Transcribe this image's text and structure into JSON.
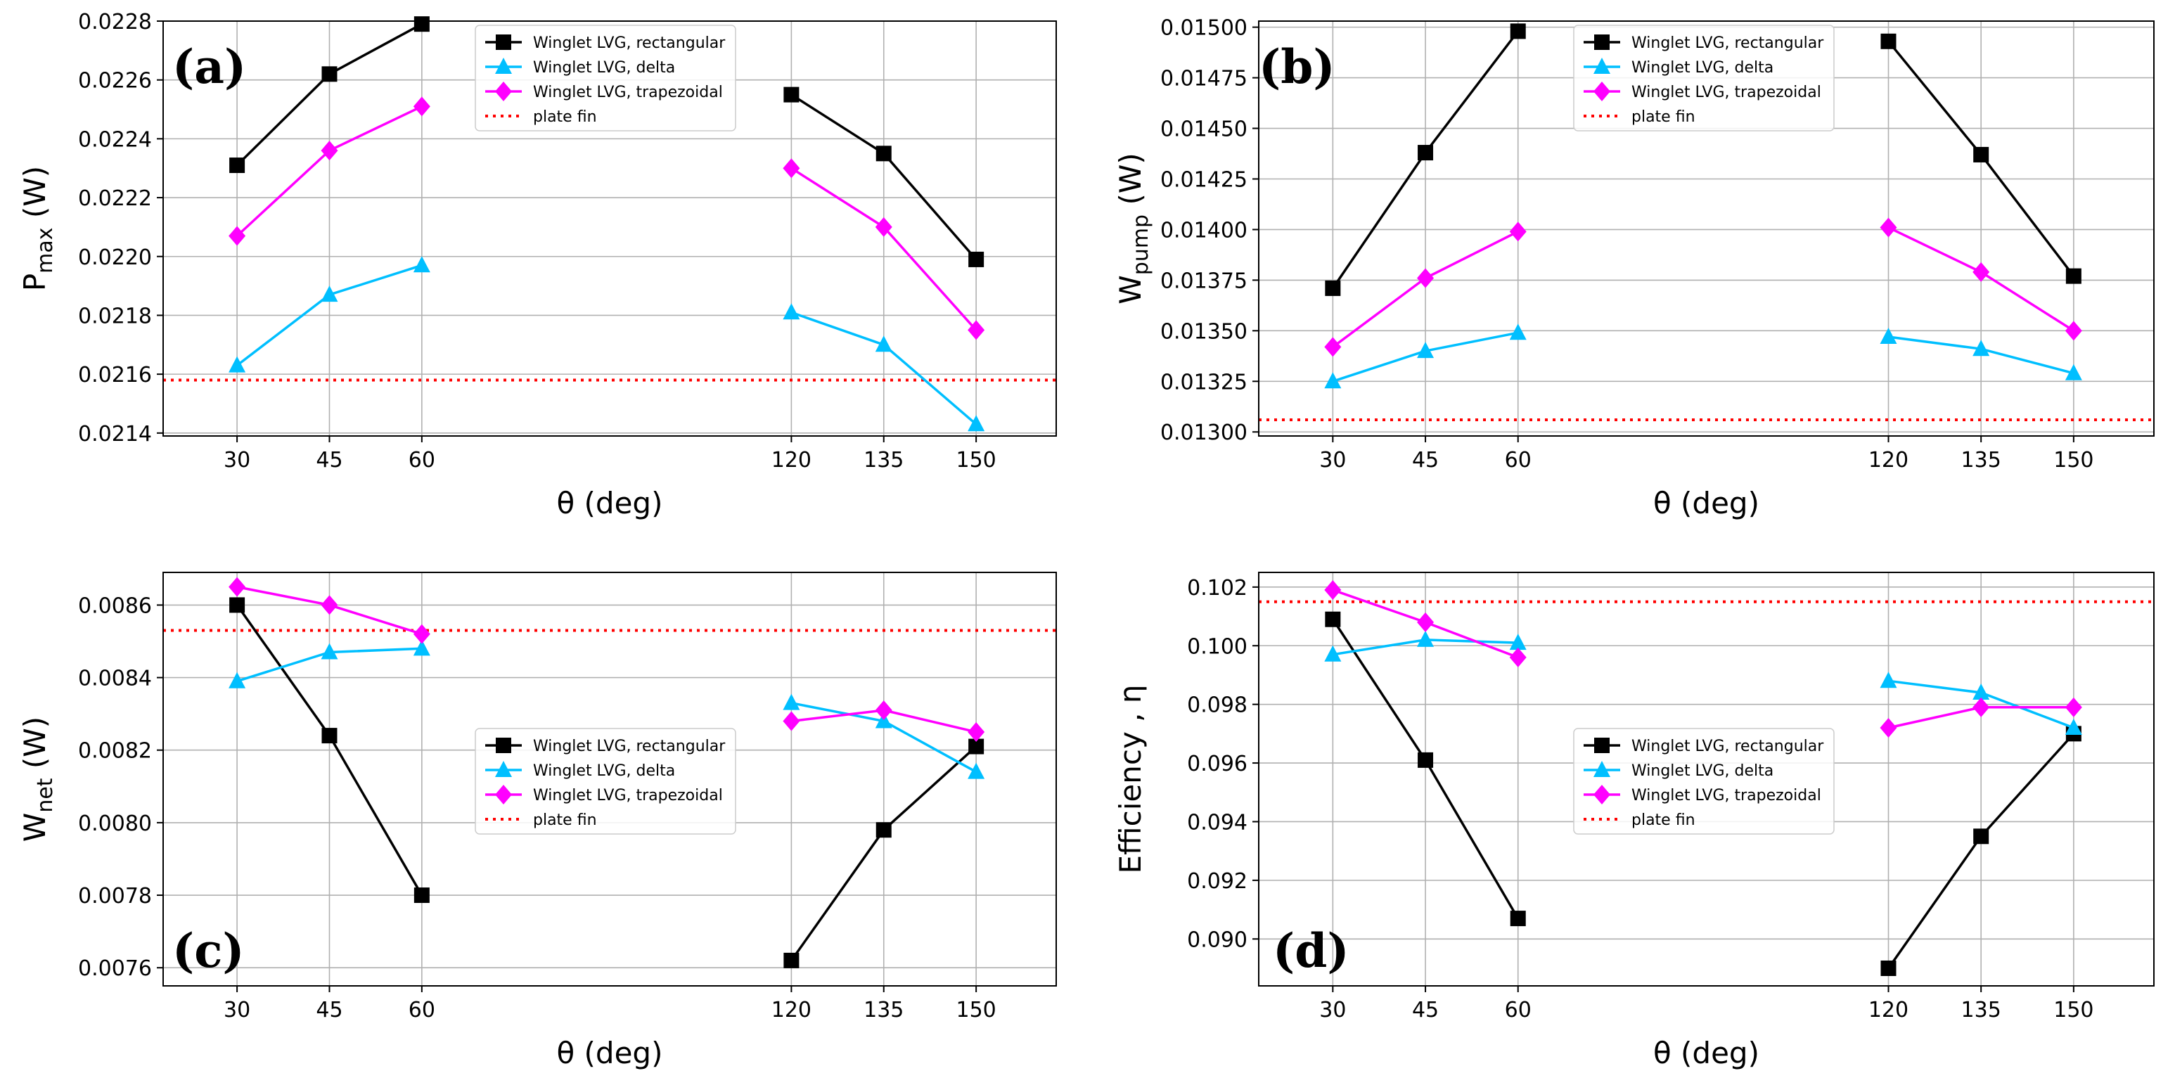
{
  "chart_data": [
    {
      "type": "line",
      "panel": "(a)",
      "xlabel": "θ (deg)",
      "ylabel": {
        "base": "P",
        "sub": "max",
        "unit": " (W)"
      },
      "x": [
        30,
        45,
        60,
        120,
        135,
        150
      ],
      "x_tick_labels": [
        "30",
        "45",
        "60",
        "120",
        "135",
        "150"
      ],
      "ylim": [
        0.02139,
        0.0228
      ],
      "y_ticks": [
        0.0214,
        0.0216,
        0.0218,
        0.022,
        0.0222,
        0.0224,
        0.0226,
        0.0228
      ],
      "y_tick_labels": [
        "0.0214",
        "0.0216",
        "0.0218",
        "0.0220",
        "0.0222",
        "0.0224",
        "0.0226",
        "0.0228"
      ],
      "legend_position": "top-center",
      "series": [
        {
          "name": "Winglet LVG, rectangular",
          "color": "#000000",
          "marker": "square",
          "values": [
            0.02231,
            0.02262,
            0.02279,
            0.02255,
            0.02235,
            0.02199
          ]
        },
        {
          "name": "Winglet LVG, delta",
          "color": "#00bfff",
          "marker": "triangle",
          "values": [
            0.02163,
            0.02187,
            0.02197,
            0.02181,
            0.0217,
            0.02143
          ]
        },
        {
          "name": "Winglet LVG, trapezoidal",
          "color": "#ff00ff",
          "marker": "diamond",
          "values": [
            0.02207,
            0.02236,
            0.02251,
            0.0223,
            0.0221,
            0.02175
          ]
        }
      ],
      "reference_line": {
        "name": "plate fin",
        "color": "#ff0000",
        "value": 0.02158
      }
    },
    {
      "type": "line",
      "panel": "(b)",
      "xlabel": "θ (deg)",
      "ylabel": {
        "base": "W",
        "sub": "pump",
        "unit": " (W)"
      },
      "x": [
        30,
        45,
        60,
        120,
        135,
        150
      ],
      "x_tick_labels": [
        "30",
        "45",
        "60",
        "120",
        "135",
        "150"
      ],
      "ylim": [
        0.01298,
        0.01503
      ],
      "y_ticks": [
        0.013,
        0.01325,
        0.0135,
        0.01375,
        0.014,
        0.01425,
        0.0145,
        0.01475,
        0.015
      ],
      "y_tick_labels": [
        "0.01300",
        "0.01325",
        "0.01350",
        "0.01375",
        "0.01400",
        "0.01425",
        "0.01450",
        "0.01475",
        "0.01500"
      ],
      "legend_position": "top-center",
      "series": [
        {
          "name": "Winglet LVG, rectangular",
          "color": "#000000",
          "marker": "square",
          "values": [
            0.01371,
            0.01438,
            0.01498,
            0.01493,
            0.01437,
            0.01377
          ]
        },
        {
          "name": "Winglet LVG, delta",
          "color": "#00bfff",
          "marker": "triangle",
          "values": [
            0.01325,
            0.0134,
            0.01349,
            0.01347,
            0.01341,
            0.01329
          ]
        },
        {
          "name": "Winglet LVG, trapezoidal",
          "color": "#ff00ff",
          "marker": "diamond",
          "values": [
            0.01342,
            0.01376,
            0.01399,
            0.01401,
            0.01379,
            0.0135
          ]
        }
      ],
      "reference_line": {
        "name": "plate fin",
        "color": "#ff0000",
        "value": 0.01306
      }
    },
    {
      "type": "line",
      "panel": "(c)",
      "xlabel": "θ (deg)",
      "ylabel": {
        "base": "W",
        "sub": "net",
        "unit": " (W)"
      },
      "x": [
        30,
        45,
        60,
        120,
        135,
        150
      ],
      "x_tick_labels": [
        "30",
        "45",
        "60",
        "120",
        "135",
        "150"
      ],
      "ylim": [
        0.00755,
        0.00869
      ],
      "y_ticks": [
        0.0076,
        0.0078,
        0.008,
        0.0082,
        0.0084,
        0.0086
      ],
      "y_tick_labels": [
        "0.0076",
        "0.0078",
        "0.0080",
        "0.0082",
        "0.0084",
        "0.0086"
      ],
      "legend_position": "center",
      "series": [
        {
          "name": "Winglet LVG, rectangular",
          "color": "#000000",
          "marker": "square",
          "values": [
            0.0086,
            0.00824,
            0.0078,
            0.00762,
            0.00798,
            0.00821
          ]
        },
        {
          "name": "Winglet LVG, delta",
          "color": "#00bfff",
          "marker": "triangle",
          "values": [
            0.00839,
            0.00847,
            0.00848,
            0.00833,
            0.00828,
            0.00814
          ]
        },
        {
          "name": "Winglet LVG, trapezoidal",
          "color": "#ff00ff",
          "marker": "diamond",
          "values": [
            0.00865,
            0.0086,
            0.00852,
            0.00828,
            0.00831,
            0.00825
          ]
        }
      ],
      "reference_line": {
        "name": "plate fin",
        "color": "#ff0000",
        "value": 0.00853
      }
    },
    {
      "type": "line",
      "panel": "(d)",
      "xlabel": "θ (deg)",
      "ylabel": {
        "base": "Efficiency , η",
        "sub": "",
        "unit": ""
      },
      "x": [
        30,
        45,
        60,
        120,
        135,
        150
      ],
      "x_tick_labels": [
        "30",
        "45",
        "60",
        "120",
        "135",
        "150"
      ],
      "ylim": [
        0.0884,
        0.1025
      ],
      "y_ticks": [
        0.09,
        0.092,
        0.094,
        0.096,
        0.098,
        0.1,
        0.102
      ],
      "y_tick_labels": [
        "0.090",
        "0.092",
        "0.094",
        "0.096",
        "0.098",
        "0.100",
        "0.102"
      ],
      "legend_position": "center",
      "series": [
        {
          "name": "Winglet LVG, rectangular",
          "color": "#000000",
          "marker": "square",
          "values": [
            0.1009,
            0.0961,
            0.0907,
            0.089,
            0.0935,
            0.097
          ]
        },
        {
          "name": "Winglet LVG, delta",
          "color": "#00bfff",
          "marker": "triangle",
          "values": [
            0.0997,
            0.1002,
            0.1001,
            0.0988,
            0.0984,
            0.0972
          ]
        },
        {
          "name": "Winglet LVG, trapezoidal",
          "color": "#ff00ff",
          "marker": "diamond",
          "values": [
            0.1019,
            0.1008,
            0.0996,
            0.0972,
            0.0979,
            0.0979
          ]
        }
      ],
      "reference_line": {
        "name": "plate fin",
        "color": "#ff0000",
        "value": 0.1015
      }
    }
  ]
}
